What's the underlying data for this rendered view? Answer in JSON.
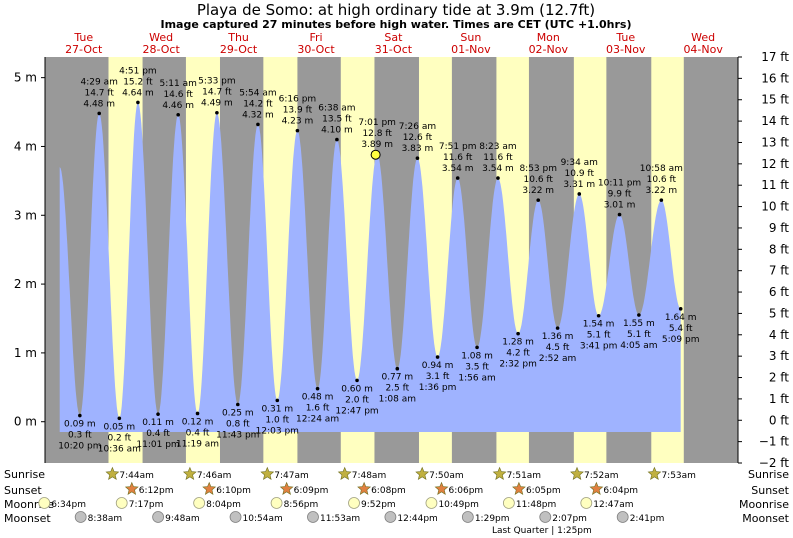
{
  "header": {
    "title": "Playa de Somo: at high  ordinary tide at 3.9m (12.7ft)",
    "subtitle": "Image captured 27 minutes before high water. Times are CET (UTC +1.0hrs)"
  },
  "days": [
    {
      "dow": "Tue",
      "date": "27-Oct"
    },
    {
      "dow": "Wed",
      "date": "28-Oct"
    },
    {
      "dow": "Thu",
      "date": "29-Oct"
    },
    {
      "dow": "Fri",
      "date": "30-Oct"
    },
    {
      "dow": "Sat",
      "date": "31-Oct"
    },
    {
      "dow": "Sun",
      "date": "01-Nov"
    },
    {
      "dow": "Mon",
      "date": "02-Nov"
    },
    {
      "dow": "Tue",
      "date": "03-Nov"
    },
    {
      "dow": "Wed",
      "date": "04-Nov"
    }
  ],
  "chart_data": {
    "type": "area",
    "title": "Playa de Somo: at high  ordinary tide at 3.9m (12.7ft)",
    "ylabel_left": "m",
    "ylabel_right": "ft",
    "ylim_m": [
      -0.6,
      5.3
    ],
    "ylim_ft": [
      -2,
      17
    ],
    "xlim_days": [
      0,
      8.95
    ],
    "yticks_m": [
      "0 m",
      "1 m",
      "2 m",
      "3 m",
      "4 m",
      "5 m"
    ],
    "yticks_ft": [
      "−2 ft",
      "−1 ft",
      "0 ft",
      "1 ft",
      "2 ft",
      "3 ft",
      "4 ft",
      "5 ft",
      "6 ft",
      "7 ft",
      "8 ft",
      "9 ft",
      "10 ft",
      "11 ft",
      "12 ft",
      "13 ft",
      "14 ft",
      "15 ft",
      "16 ft",
      "17 ft"
    ],
    "start_level_m": 3.7,
    "extremes": [
      {
        "t": 0.45,
        "m": 0.09,
        "time": "10:20 pm",
        "ft": "0.3 ft",
        "type": "low"
      },
      {
        "t": 0.7,
        "m": 4.48,
        "time": "4:29 am",
        "ft": "14.7 ft",
        "type": "high"
      },
      {
        "t": 0.96,
        "m": 0.05,
        "time": "10:36 am",
        "ft": "0.2 ft",
        "type": "low"
      },
      {
        "t": 1.2,
        "m": 4.64,
        "time": "4:51 pm",
        "ft": "15.2 ft",
        "type": "high"
      },
      {
        "t": 1.46,
        "m": 0.11,
        "time": "11:01 pm",
        "ft": "0.4 ft",
        "type": "low"
      },
      {
        "t": 1.72,
        "m": 4.46,
        "time": "5:11 am",
        "ft": "14.6 ft",
        "type": "high"
      },
      {
        "t": 1.97,
        "m": 0.12,
        "time": "11:19 am",
        "ft": "0.4 ft",
        "type": "low"
      },
      {
        "t": 2.22,
        "m": 4.49,
        "time": "5:33 pm",
        "ft": "14.7 ft",
        "type": "high"
      },
      {
        "t": 2.49,
        "m": 0.25,
        "time": "11:43 pm",
        "ft": "0.8 ft",
        "type": "low"
      },
      {
        "t": 2.75,
        "m": 4.32,
        "time": "5:54 am",
        "ft": "14.2 ft",
        "type": "high"
      },
      {
        "t": 3.0,
        "m": 0.31,
        "time": "12:03 pm",
        "ft": "1.0 ft",
        "type": "low"
      },
      {
        "t": 3.26,
        "m": 4.23,
        "time": "6:16 pm",
        "ft": "13.9 ft",
        "type": "high"
      },
      {
        "t": 3.52,
        "m": 0.48,
        "time": "12:24 am",
        "ft": "1.6 ft",
        "type": "low"
      },
      {
        "t": 3.77,
        "m": 4.1,
        "time": "6:38 am",
        "ft": "13.5 ft",
        "type": "high"
      },
      {
        "t": 4.03,
        "m": 0.6,
        "time": "12:47 pm",
        "ft": "2.0 ft",
        "type": "low"
      },
      {
        "t": 4.29,
        "m": 3.89,
        "time": "7:01 pm",
        "ft": "12.8 ft",
        "type": "high"
      },
      {
        "t": 4.55,
        "m": 0.77,
        "time": "1:08 am",
        "ft": "2.5 ft",
        "type": "low"
      },
      {
        "t": 4.81,
        "m": 3.83,
        "time": "7:26 am",
        "ft": "12.6 ft",
        "type": "high"
      },
      {
        "t": 5.07,
        "m": 0.94,
        "time": "1:36 pm",
        "ft": "3.1 ft",
        "type": "low"
      },
      {
        "t": 5.33,
        "m": 3.54,
        "time": "7:51 pm",
        "ft": "11.6 ft",
        "type": "high"
      },
      {
        "t": 5.58,
        "m": 1.08,
        "time": "1:56 am",
        "ft": "3.5 ft",
        "type": "low"
      },
      {
        "t": 5.85,
        "m": 3.54,
        "time": "8:23 am",
        "ft": "11.6 ft",
        "type": "high"
      },
      {
        "t": 6.11,
        "m": 1.28,
        "time": "2:32 pm",
        "ft": "4.2 ft",
        "type": "low"
      },
      {
        "t": 6.37,
        "m": 3.22,
        "time": "8:53 pm",
        "ft": "10.6 ft",
        "type": "high"
      },
      {
        "t": 6.62,
        "m": 1.36,
        "time": "2:52 am",
        "ft": "4.5 ft",
        "type": "low"
      },
      {
        "t": 6.9,
        "m": 3.31,
        "time": "9:34 am",
        "ft": "10.9 ft",
        "type": "high"
      },
      {
        "t": 7.15,
        "m": 1.54,
        "time": "3:41 pm",
        "ft": "5.1 ft",
        "type": "low"
      },
      {
        "t": 7.42,
        "m": 3.01,
        "time": "10:11 pm",
        "ft": "9.9 ft",
        "type": "high"
      },
      {
        "t": 7.67,
        "m": 1.55,
        "time": "4:05 am",
        "ft": "5.1 ft",
        "type": "low"
      },
      {
        "t": 7.96,
        "m": 3.22,
        "time": "10:58 am",
        "ft": "10.6 ft",
        "type": "high"
      },
      {
        "t": 8.21,
        "m": 1.64,
        "time": "5:09 pm",
        "ft": "5.4 ft",
        "type": "low"
      }
    ],
    "current": {
      "t": 4.27,
      "m": 3.88
    }
  },
  "day_bands": [
    {
      "rise": 0.82,
      "set": 1.26
    },
    {
      "rise": 1.82,
      "set": 2.26
    },
    {
      "rise": 2.82,
      "set": 3.26
    },
    {
      "rise": 3.82,
      "set": 4.255
    },
    {
      "rise": 4.83,
      "set": 5.255
    },
    {
      "rise": 5.83,
      "set": 6.25
    },
    {
      "rise": 6.83,
      "set": 7.25
    },
    {
      "rise": 7.83,
      "set": 8.25
    }
  ],
  "rows": {
    "labels": {
      "sunrise": "Sunrise",
      "sunset": "Sunset",
      "moonrise": "Moonrise",
      "moonset": "Moonset"
    },
    "sunrise": [
      {
        "t": 1.0,
        "time": "7:44am"
      },
      {
        "t": 2.0,
        "time": "7:46am"
      },
      {
        "t": 3.0,
        "time": "7:47am"
      },
      {
        "t": 4.0,
        "time": "7:48am"
      },
      {
        "t": 5.0,
        "time": "7:50am"
      },
      {
        "t": 6.0,
        "time": "7:51am"
      },
      {
        "t": 7.0,
        "time": "7:52am"
      },
      {
        "t": 8.0,
        "time": "7:53am"
      }
    ],
    "sunset": [
      {
        "t": 1.25,
        "time": "6:12pm"
      },
      {
        "t": 2.25,
        "time": "6:10pm"
      },
      {
        "t": 3.25,
        "time": "6:09pm"
      },
      {
        "t": 4.25,
        "time": "6:08pm"
      },
      {
        "t": 5.25,
        "time": "6:06pm"
      },
      {
        "t": 6.25,
        "time": "6:05pm"
      },
      {
        "t": 7.25,
        "time": "6:04pm"
      }
    ],
    "moonrise": [
      {
        "t": 0.12,
        "time": "6:34pm"
      },
      {
        "t": 1.12,
        "time": "7:17pm"
      },
      {
        "t": 2.12,
        "time": "8:04pm"
      },
      {
        "t": 3.12,
        "time": "8:56pm"
      },
      {
        "t": 4.12,
        "time": "9:52pm"
      },
      {
        "t": 5.12,
        "time": "10:49pm"
      },
      {
        "t": 6.12,
        "time": "11:48pm"
      },
      {
        "t": 7.12,
        "time": "12:47am"
      }
    ],
    "moonset": [
      {
        "t": 0.59,
        "time": "8:38am"
      },
      {
        "t": 1.59,
        "time": "9:48am"
      },
      {
        "t": 2.59,
        "time": "10:54am"
      },
      {
        "t": 3.59,
        "time": "11:53am"
      },
      {
        "t": 4.59,
        "time": "12:44pm"
      },
      {
        "t": 5.59,
        "time": "1:29pm"
      },
      {
        "t": 6.59,
        "time": "2:07pm"
      },
      {
        "t": 7.59,
        "time": "2:41pm"
      }
    ],
    "phase": {
      "t": 6.16,
      "text": "Last Quarter | 1:25pm"
    }
  },
  "colors": {
    "night": "#999999",
    "day": "#ffffc0",
    "water": "#9fb3ff",
    "sun": "#c0b040",
    "sunset": "#e08040",
    "moon": "#ffffc0",
    "moonset": "#c0c0c0",
    "daylabel": "#cc0000"
  }
}
